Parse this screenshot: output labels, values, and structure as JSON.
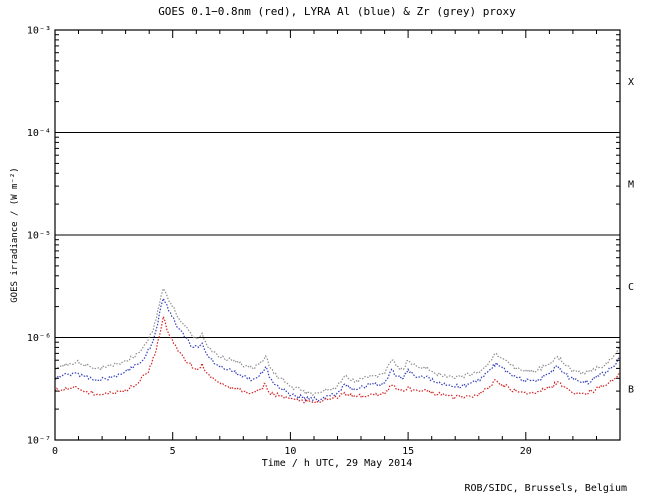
{
  "page": {
    "background": "#ffffff"
  },
  "footer": {
    "credit": "ROB/SIDC, Brussels, Belgium"
  },
  "chart_data": {
    "type": "line",
    "title": "GOES 0.1−0.8nm (red), LYRA Al (blue) & Zr (grey) proxy",
    "xlabel": "Time / h UTC, 29 May 2014",
    "ylabel": "GOES irradiance / (W m⁻²)",
    "xlim": [
      0,
      24
    ],
    "x_major_ticks": [
      0,
      5,
      10,
      15,
      20
    ],
    "x_minor_step": 1,
    "y_scale": "log",
    "ylim": [
      1e-07,
      0.001
    ],
    "y_ticks": [
      {
        "value": 0.001,
        "label": "10⁻³"
      },
      {
        "value": 0.0001,
        "label": "10⁻⁴"
      },
      {
        "value": 1e-05,
        "label": "10⁻⁵"
      },
      {
        "value": 1e-06,
        "label": "10⁻⁶"
      },
      {
        "value": 1e-07,
        "label": "10⁻⁷"
      }
    ],
    "hlines": [
      0.0001,
      1e-05,
      1e-06
    ],
    "flare_class_labels": [
      {
        "label": "X",
        "value": 0.000316
      },
      {
        "label": "M",
        "value": 3.16e-05
      },
      {
        "label": "C",
        "value": 3.16e-06
      },
      {
        "label": "B",
        "value": 3.16e-07
      }
    ],
    "grid": false,
    "legend_position": "none",
    "axis_color": "#000000",
    "series": [
      {
        "id": "lyra-zr",
        "name": "LYRA Zr (grey) proxy",
        "color": "#909090",
        "points": [
          [
            0,
            5e-07
          ],
          [
            0.3,
            5.4e-07
          ],
          [
            0.6,
            5.6e-07
          ],
          [
            0.9,
            5.8e-07
          ],
          [
            1.2,
            5.4e-07
          ],
          [
            1.5,
            5.2e-07
          ],
          [
            1.8,
            5e-07
          ],
          [
            2.1,
            5.1e-07
          ],
          [
            2.4,
            5.3e-07
          ],
          [
            2.7,
            5.6e-07
          ],
          [
            3.0,
            6e-07
          ],
          [
            3.3,
            6.4e-07
          ],
          [
            3.6,
            7.2e-07
          ],
          [
            3.9,
            9e-07
          ],
          [
            4.1,
            1.1e-06
          ],
          [
            4.3,
            1.5e-06
          ],
          [
            4.5,
            2.5e-06
          ],
          [
            4.6,
            3e-06
          ],
          [
            4.75,
            2.6e-06
          ],
          [
            4.9,
            2.2e-06
          ],
          [
            5.1,
            1.8e-06
          ],
          [
            5.3,
            1.5e-06
          ],
          [
            5.5,
            1.3e-06
          ],
          [
            5.7,
            1.15e-06
          ],
          [
            5.9,
            1e-06
          ],
          [
            6.1,
            1e-06
          ],
          [
            6.25,
            1.1e-06
          ],
          [
            6.4,
            9e-07
          ],
          [
            6.6,
            7.8e-07
          ],
          [
            6.9,
            6.8e-07
          ],
          [
            7.2,
            6.2e-07
          ],
          [
            7.5,
            6e-07
          ],
          [
            7.8,
            5.6e-07
          ],
          [
            8.1,
            5.3e-07
          ],
          [
            8.4,
            5e-07
          ],
          [
            8.7,
            5.5e-07
          ],
          [
            8.95,
            6.6e-07
          ],
          [
            9.1,
            5.2e-07
          ],
          [
            9.3,
            4.4e-07
          ],
          [
            9.6,
            4e-07
          ],
          [
            9.9,
            3.5e-07
          ],
          [
            10.2,
            3.2e-07
          ],
          [
            10.5,
            3e-07
          ],
          [
            10.8,
            2.85e-07
          ],
          [
            11.1,
            2.9e-07
          ],
          [
            11.4,
            3e-07
          ],
          [
            11.7,
            3.1e-07
          ],
          [
            12.0,
            3.4e-07
          ],
          [
            12.3,
            4.2e-07
          ],
          [
            12.5,
            3.9e-07
          ],
          [
            12.8,
            3.8e-07
          ],
          [
            13.1,
            4e-07
          ],
          [
            13.4,
            4.3e-07
          ],
          [
            13.7,
            4.1e-07
          ],
          [
            14.0,
            4.4e-07
          ],
          [
            14.3,
            6e-07
          ],
          [
            14.5,
            5.2e-07
          ],
          [
            14.8,
            4.9e-07
          ],
          [
            15.0,
            6e-07
          ],
          [
            15.2,
            5.4e-07
          ],
          [
            15.5,
            5e-07
          ],
          [
            15.8,
            5.2e-07
          ],
          [
            16.1,
            4.5e-07
          ],
          [
            16.4,
            4.3e-07
          ],
          [
            16.7,
            4.1e-07
          ],
          [
            17.0,
            4e-07
          ],
          [
            17.3,
            4.2e-07
          ],
          [
            17.6,
            4.3e-07
          ],
          [
            17.9,
            4.5e-07
          ],
          [
            18.2,
            5e-07
          ],
          [
            18.5,
            6e-07
          ],
          [
            18.75,
            7e-07
          ],
          [
            19.0,
            6.3e-07
          ],
          [
            19.3,
            5.5e-07
          ],
          [
            19.6,
            5e-07
          ],
          [
            19.9,
            4.7e-07
          ],
          [
            20.2,
            4.6e-07
          ],
          [
            20.5,
            4.8e-07
          ],
          [
            20.8,
            5.2e-07
          ],
          [
            21.1,
            5.8e-07
          ],
          [
            21.35,
            6.5e-07
          ],
          [
            21.6,
            5.6e-07
          ],
          [
            21.9,
            4.9e-07
          ],
          [
            22.2,
            4.6e-07
          ],
          [
            22.5,
            4.4e-07
          ],
          [
            22.8,
            4.7e-07
          ],
          [
            23.1,
            5.1e-07
          ],
          [
            23.4,
            5.6e-07
          ],
          [
            23.7,
            6.4e-07
          ],
          [
            24,
            8e-07
          ]
        ]
      },
      {
        "id": "lyra-al",
        "name": "LYRA Al (blue) proxy",
        "color": "#3340bb",
        "points": [
          [
            0,
            3.9e-07
          ],
          [
            0.3,
            4.2e-07
          ],
          [
            0.6,
            4.4e-07
          ],
          [
            0.9,
            4.5e-07
          ],
          [
            1.2,
            4.2e-07
          ],
          [
            1.5,
            4.1e-07
          ],
          [
            1.8,
            3.9e-07
          ],
          [
            2.1,
            4e-07
          ],
          [
            2.4,
            4.1e-07
          ],
          [
            2.7,
            4.4e-07
          ],
          [
            3.0,
            4.7e-07
          ],
          [
            3.3,
            5e-07
          ],
          [
            3.6,
            5.6e-07
          ],
          [
            3.9,
            7e-07
          ],
          [
            4.1,
            8.6e-07
          ],
          [
            4.3,
            1.2e-06
          ],
          [
            4.5,
            2e-06
          ],
          [
            4.6,
            2.4e-06
          ],
          [
            4.75,
            2.1e-06
          ],
          [
            4.9,
            1.75e-06
          ],
          [
            5.1,
            1.4e-06
          ],
          [
            5.3,
            1.2e-06
          ],
          [
            5.5,
            1e-06
          ],
          [
            5.7,
            9e-07
          ],
          [
            5.9,
            8e-07
          ],
          [
            6.1,
            8e-07
          ],
          [
            6.25,
            8.8e-07
          ],
          [
            6.4,
            7.2e-07
          ],
          [
            6.6,
            6.2e-07
          ],
          [
            6.9,
            5.4e-07
          ],
          [
            7.2,
            4.9e-07
          ],
          [
            7.5,
            4.7e-07
          ],
          [
            7.8,
            4.4e-07
          ],
          [
            8.1,
            4.2e-07
          ],
          [
            8.4,
            3.9e-07
          ],
          [
            8.7,
            4.3e-07
          ],
          [
            8.95,
            5.2e-07
          ],
          [
            9.1,
            4.1e-07
          ],
          [
            9.3,
            3.5e-07
          ],
          [
            9.6,
            3.2e-07
          ],
          [
            9.9,
            2.9e-07
          ],
          [
            10.2,
            2.7e-07
          ],
          [
            10.5,
            2.6e-07
          ],
          [
            10.8,
            2.5e-07
          ],
          [
            11.1,
            2.5e-07
          ],
          [
            11.4,
            2.6e-07
          ],
          [
            11.7,
            2.7e-07
          ],
          [
            12.0,
            2.9e-07
          ],
          [
            12.3,
            3.5e-07
          ],
          [
            12.5,
            3.2e-07
          ],
          [
            12.8,
            3.1e-07
          ],
          [
            13.1,
            3.3e-07
          ],
          [
            13.4,
            3.5e-07
          ],
          [
            13.7,
            3.4e-07
          ],
          [
            14.0,
            3.6e-07
          ],
          [
            14.3,
            4.9e-07
          ],
          [
            14.5,
            4.2e-07
          ],
          [
            14.8,
            4e-07
          ],
          [
            15.0,
            4.9e-07
          ],
          [
            15.2,
            4.4e-07
          ],
          [
            15.5,
            4.1e-07
          ],
          [
            15.8,
            4.2e-07
          ],
          [
            16.1,
            3.7e-07
          ],
          [
            16.4,
            3.5e-07
          ],
          [
            16.7,
            3.4e-07
          ],
          [
            17.0,
            3.3e-07
          ],
          [
            17.3,
            3.4e-07
          ],
          [
            17.6,
            3.5e-07
          ],
          [
            17.9,
            3.7e-07
          ],
          [
            18.2,
            4.1e-07
          ],
          [
            18.5,
            4.9e-07
          ],
          [
            18.75,
            5.7e-07
          ],
          [
            19.0,
            5.1e-07
          ],
          [
            19.3,
            4.5e-07
          ],
          [
            19.6,
            4.1e-07
          ],
          [
            19.9,
            3.8e-07
          ],
          [
            20.2,
            3.8e-07
          ],
          [
            20.5,
            3.9e-07
          ],
          [
            20.8,
            4.2e-07
          ],
          [
            21.1,
            4.7e-07
          ],
          [
            21.35,
            5.3e-07
          ],
          [
            21.6,
            4.6e-07
          ],
          [
            21.9,
            4e-07
          ],
          [
            22.2,
            3.8e-07
          ],
          [
            22.5,
            3.6e-07
          ],
          [
            22.8,
            3.8e-07
          ],
          [
            23.1,
            4.2e-07
          ],
          [
            23.4,
            4.6e-07
          ],
          [
            23.7,
            5.2e-07
          ],
          [
            24,
            6.5e-07
          ]
        ]
      },
      {
        "id": "goes",
        "name": "GOES 0.1−0.8nm (red)",
        "color": "#d42222",
        "points": [
          [
            0,
            3e-07
          ],
          [
            0.3,
            3.1e-07
          ],
          [
            0.6,
            3.2e-07
          ],
          [
            0.9,
            3.3e-07
          ],
          [
            1.2,
            3e-07
          ],
          [
            1.5,
            2.9e-07
          ],
          [
            1.8,
            2.8e-07
          ],
          [
            2.1,
            2.8e-07
          ],
          [
            2.4,
            2.9e-07
          ],
          [
            2.7,
            3e-07
          ],
          [
            3.0,
            3.1e-07
          ],
          [
            3.3,
            3.3e-07
          ],
          [
            3.6,
            3.7e-07
          ],
          [
            3.9,
            4.5e-07
          ],
          [
            4.1,
            5.5e-07
          ],
          [
            4.3,
            7.5e-07
          ],
          [
            4.5,
            1.2e-06
          ],
          [
            4.6,
            1.6e-06
          ],
          [
            4.75,
            1.2e-06
          ],
          [
            4.9,
            1e-06
          ],
          [
            5.1,
            8.5e-07
          ],
          [
            5.3,
            7.2e-07
          ],
          [
            5.5,
            6.2e-07
          ],
          [
            5.7,
            5.6e-07
          ],
          [
            5.9,
            5e-07
          ],
          [
            6.1,
            5e-07
          ],
          [
            6.25,
            5.6e-07
          ],
          [
            6.4,
            4.6e-07
          ],
          [
            6.6,
            4.1e-07
          ],
          [
            6.9,
            3.7e-07
          ],
          [
            7.2,
            3.4e-07
          ],
          [
            7.5,
            3.3e-07
          ],
          [
            7.8,
            3.1e-07
          ],
          [
            8.1,
            3e-07
          ],
          [
            8.4,
            2.9e-07
          ],
          [
            8.7,
            3.1e-07
          ],
          [
            8.95,
            3.5e-07
          ],
          [
            9.1,
            2.9e-07
          ],
          [
            9.3,
            2.8e-07
          ],
          [
            9.6,
            2.7e-07
          ],
          [
            9.9,
            2.6e-07
          ],
          [
            10.2,
            2.5e-07
          ],
          [
            10.5,
            2.45e-07
          ],
          [
            10.8,
            2.4e-07
          ],
          [
            11.1,
            2.4e-07
          ],
          [
            11.4,
            2.45e-07
          ],
          [
            11.7,
            2.5e-07
          ],
          [
            12.0,
            2.55e-07
          ],
          [
            12.3,
            2.9e-07
          ],
          [
            12.5,
            2.7e-07
          ],
          [
            12.8,
            2.65e-07
          ],
          [
            13.1,
            2.7e-07
          ],
          [
            13.4,
            2.8e-07
          ],
          [
            13.7,
            2.7e-07
          ],
          [
            14.0,
            2.8e-07
          ],
          [
            14.3,
            3.4e-07
          ],
          [
            14.5,
            3.1e-07
          ],
          [
            14.8,
            3e-07
          ],
          [
            15.0,
            3.3e-07
          ],
          [
            15.2,
            3.1e-07
          ],
          [
            15.5,
            3e-07
          ],
          [
            15.8,
            3e-07
          ],
          [
            16.1,
            2.8e-07
          ],
          [
            16.4,
            2.75e-07
          ],
          [
            16.7,
            2.7e-07
          ],
          [
            17.0,
            2.6e-07
          ],
          [
            17.3,
            2.65e-07
          ],
          [
            17.6,
            2.7e-07
          ],
          [
            17.9,
            2.75e-07
          ],
          [
            18.2,
            3e-07
          ],
          [
            18.5,
            3.4e-07
          ],
          [
            18.75,
            3.8e-07
          ],
          [
            19.0,
            3.5e-07
          ],
          [
            19.3,
            3.2e-07
          ],
          [
            19.6,
            3e-07
          ],
          [
            19.9,
            2.9e-07
          ],
          [
            20.2,
            2.9e-07
          ],
          [
            20.5,
            2.95e-07
          ],
          [
            20.8,
            3.1e-07
          ],
          [
            21.1,
            3.3e-07
          ],
          [
            21.35,
            3.7e-07
          ],
          [
            21.6,
            3.3e-07
          ],
          [
            21.9,
            3e-07
          ],
          [
            22.2,
            2.9e-07
          ],
          [
            22.5,
            2.85e-07
          ],
          [
            22.8,
            3e-07
          ],
          [
            23.1,
            3.2e-07
          ],
          [
            23.4,
            3.4e-07
          ],
          [
            23.7,
            3.8e-07
          ],
          [
            24,
            4.5e-07
          ]
        ]
      }
    ]
  }
}
